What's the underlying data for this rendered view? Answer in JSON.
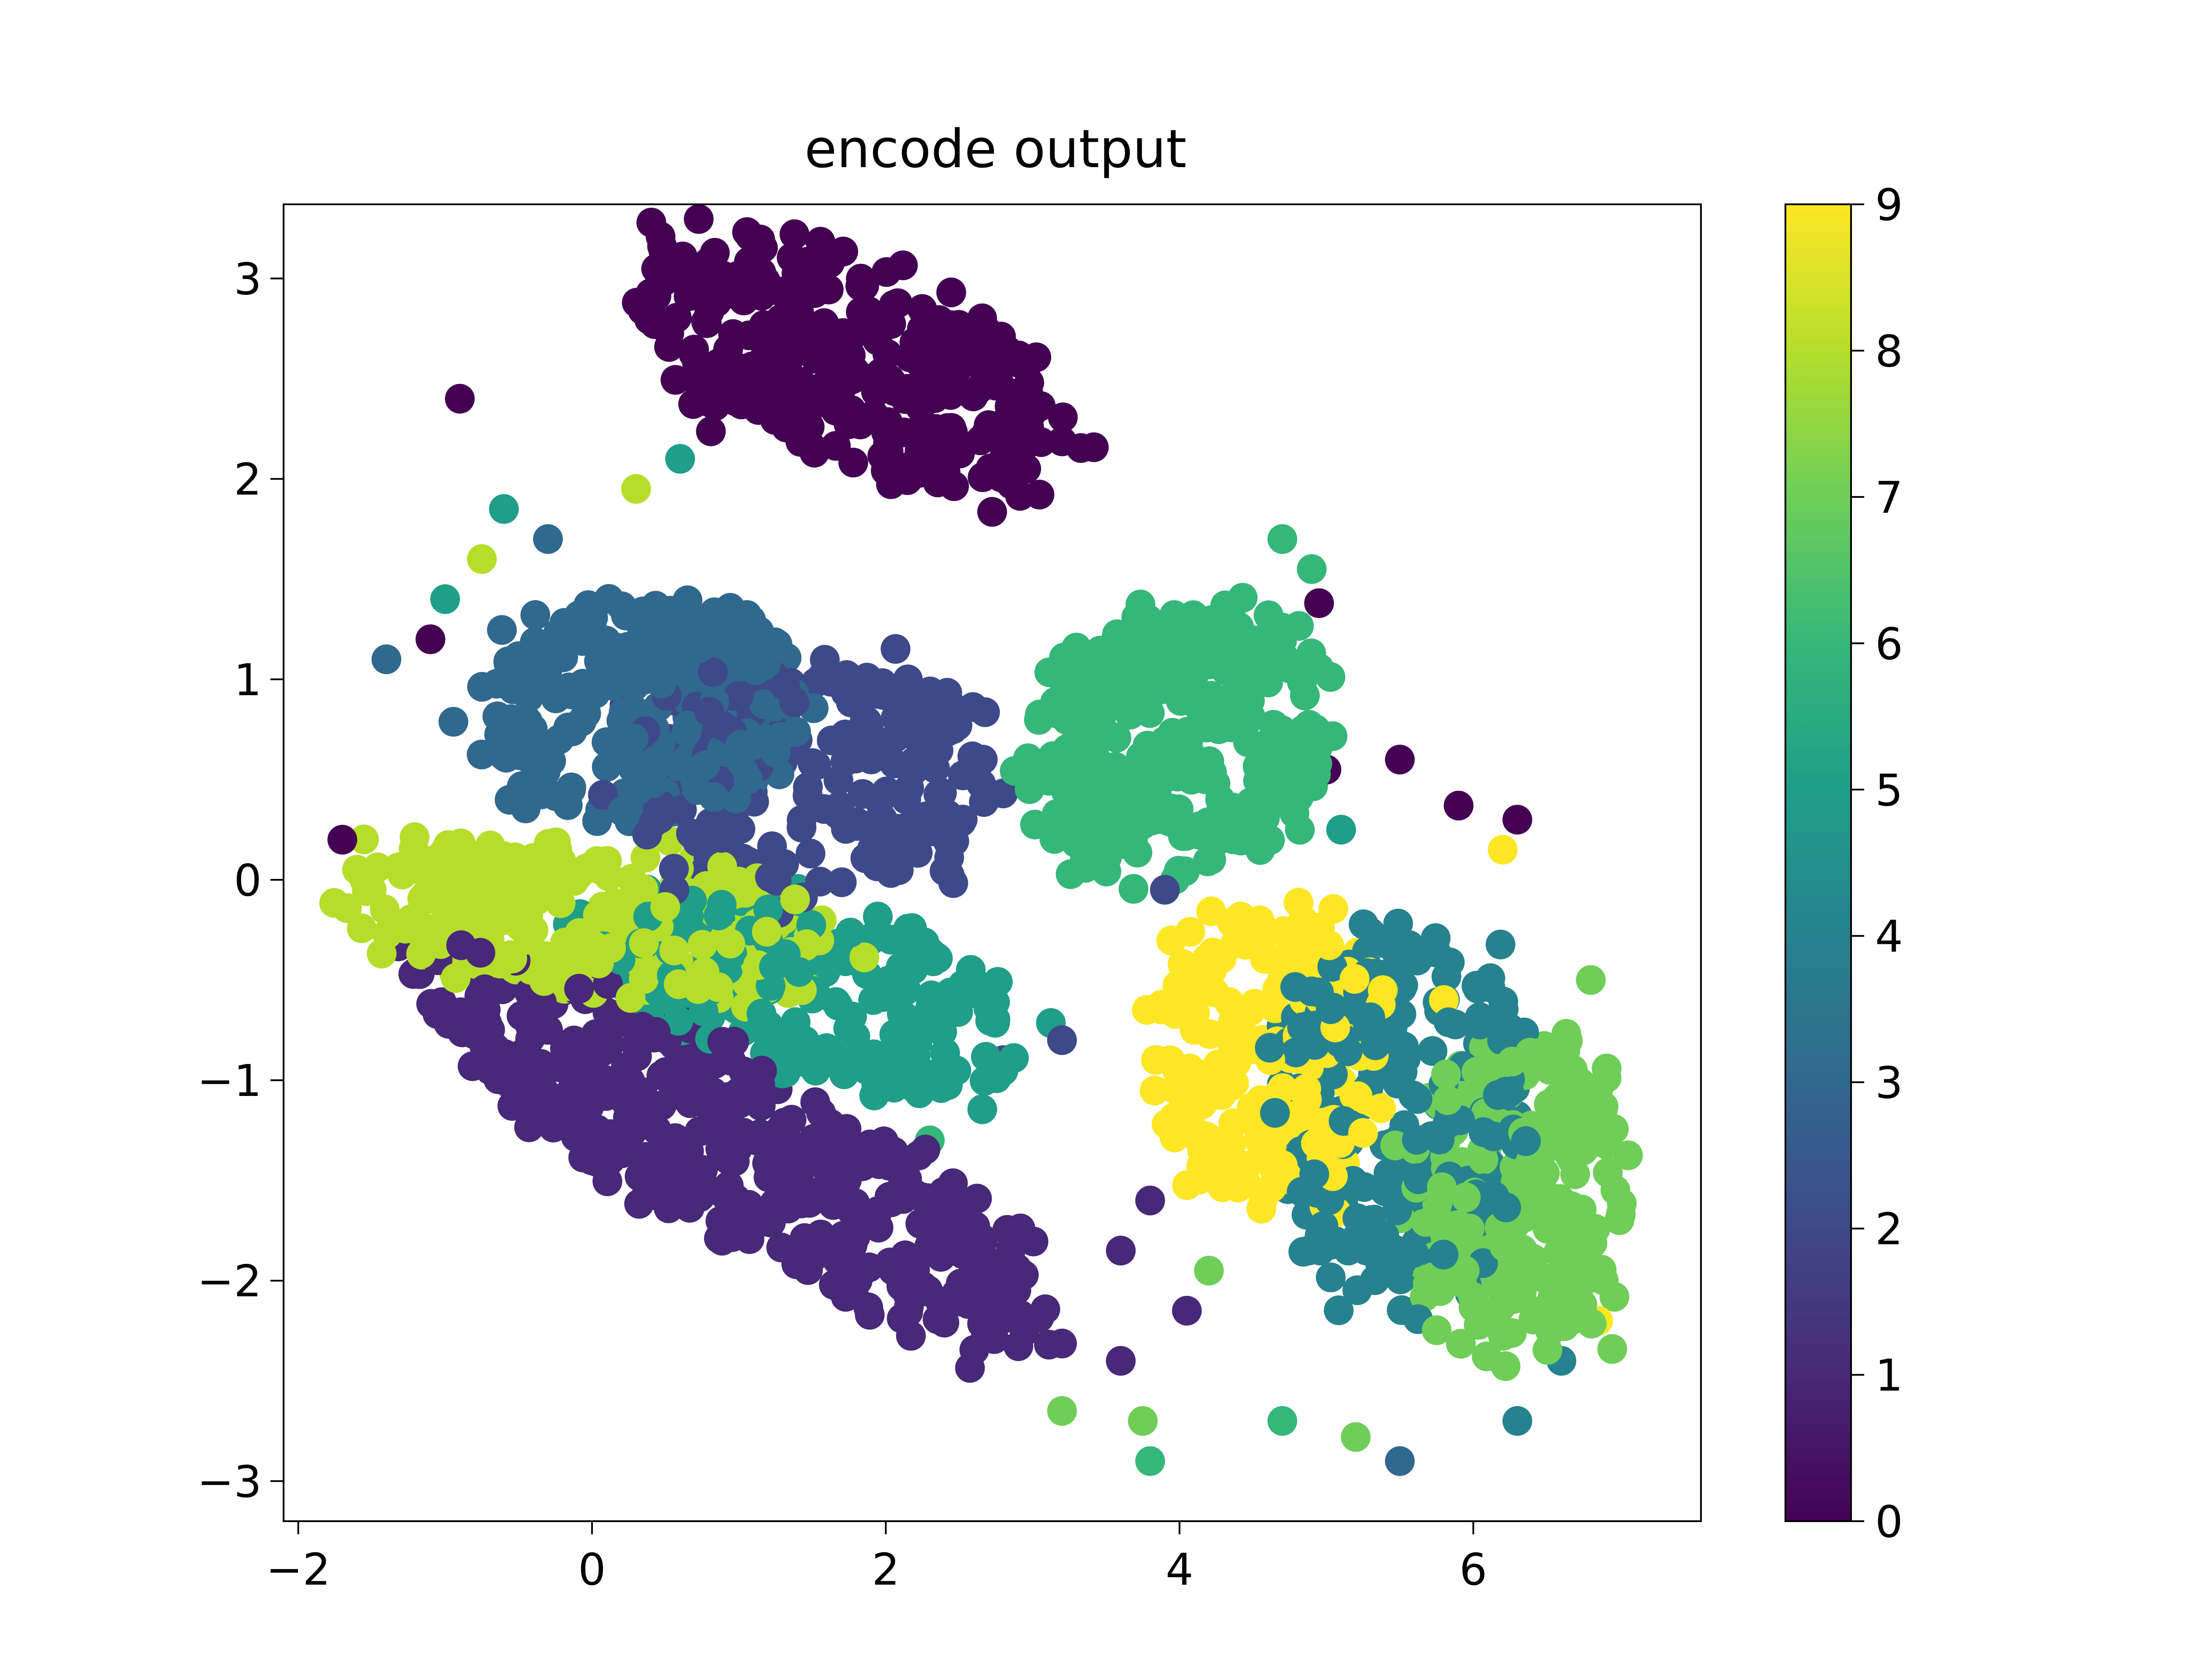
{
  "chart_data": {
    "type": "scatter",
    "title": "encode output",
    "xlabel": "",
    "ylabel": "",
    "xlim": [
      -2.1,
      7.55
    ],
    "ylim": [
      -3.2,
      3.37
    ],
    "x_ticks": [
      -2,
      0,
      2,
      4,
      6
    ],
    "y_ticks": [
      -3,
      -2,
      -1,
      0,
      1,
      2,
      3
    ],
    "x_tick_labels": [
      "−2",
      "0",
      "2",
      "4",
      "6"
    ],
    "y_tick_labels": [
      "−3",
      "−2",
      "−1",
      "0",
      "1",
      "2",
      "3"
    ],
    "grid": false,
    "legend": "none",
    "colormap": "viridis",
    "colorbar": {
      "min": 0,
      "max": 9,
      "ticks": [
        0,
        1,
        2,
        3,
        4,
        5,
        6,
        7,
        8,
        9
      ],
      "tick_labels": [
        "0",
        "1",
        "2",
        "3",
        "4",
        "5",
        "6",
        "7",
        "8",
        "9"
      ],
      "placement": "right"
    },
    "marker": "filled circle",
    "point_count": "~3000 (dense clusters)",
    "class_clusters": [
      {
        "label": 0,
        "color": "#440154",
        "center": [
          1.8,
          2.55
        ],
        "spread": [
          1.5,
          0.5
        ],
        "tilt": -0.25,
        "count": 330,
        "outliers": [
          [
            -0.9,
            2.4
          ],
          [
            -1.1,
            1.2
          ],
          [
            -1.7,
            0.2
          ],
          [
            -0.35,
            -0.42
          ],
          [
            5.5,
            0.6
          ],
          [
            5.9,
            0.37
          ],
          [
            6.3,
            0.3
          ],
          [
            5.0,
            0.55
          ],
          [
            4.95,
            1.38
          ]
        ]
      },
      {
        "label": 1,
        "color": "#482878",
        "center": [
          1.0,
          -1.35
        ],
        "spread": [
          2.25,
          0.48
        ],
        "tilt": -0.38,
        "count": 420,
        "outliers": [
          [
            3.8,
            -1.6
          ],
          [
            3.6,
            -1.85
          ],
          [
            4.05,
            -2.15
          ],
          [
            3.6,
            -2.4
          ]
        ]
      },
      {
        "label": 2,
        "color": "#3e4989",
        "center": [
          1.5,
          0.55
        ],
        "spread": [
          1.2,
          0.6
        ],
        "tilt": 0.0,
        "count": 220,
        "outliers": [
          [
            2.8,
            -0.9
          ],
          [
            3.2,
            -0.8
          ],
          [
            3.9,
            -0.05
          ],
          [
            3.6,
            0.2
          ]
        ]
      },
      {
        "label": 3,
        "color": "#31688e",
        "center": [
          0.3,
          0.85
        ],
        "spread": [
          1.1,
          0.55
        ],
        "tilt": 0.1,
        "count": 260,
        "outliers": [
          [
            -1.4,
            1.1
          ],
          [
            -0.3,
            1.7
          ],
          [
            5.5,
            -2.9
          ]
        ]
      },
      {
        "label": 4,
        "color": "#26828e",
        "center": [
          5.5,
          -1.2
        ],
        "spread": [
          0.85,
          0.9
        ],
        "tilt": 0.0,
        "count": 260,
        "outliers": [
          [
            6.6,
            -2.4
          ],
          [
            6.3,
            -2.7
          ]
        ]
      },
      {
        "label": 5,
        "color": "#1f9e89",
        "center": [
          1.5,
          -0.55
        ],
        "spread": [
          1.4,
          0.45
        ],
        "tilt": -0.2,
        "count": 230,
        "outliers": [
          [
            -0.6,
            1.85
          ],
          [
            -1.0,
            1.4
          ],
          [
            0.6,
            2.1
          ],
          [
            5.1,
            0.25
          ]
        ]
      },
      {
        "label": 6,
        "color": "#35b779",
        "center": [
          4.0,
          0.7
        ],
        "spread": [
          1.0,
          0.65
        ],
        "tilt": 0.15,
        "count": 340,
        "outliers": [
          [
            4.9,
            1.55
          ],
          [
            4.7,
            1.7
          ],
          [
            3.8,
            -2.9
          ],
          [
            4.7,
            -2.7
          ],
          [
            2.3,
            -1.3
          ]
        ]
      },
      {
        "label": 7,
        "color": "#6ece58",
        "center": [
          6.3,
          -1.55
        ],
        "spread": [
          0.75,
          0.75
        ],
        "tilt": 0.0,
        "count": 260,
        "outliers": [
          [
            6.8,
            -0.5
          ],
          [
            6.85,
            -1.05
          ],
          [
            3.2,
            -2.65
          ],
          [
            3.75,
            -2.7
          ],
          [
            5.2,
            -2.78
          ],
          [
            4.2,
            -1.95
          ]
        ]
      },
      {
        "label": 8,
        "color": "#b5de2b",
        "center": [
          0.0,
          -0.2
        ],
        "spread": [
          1.55,
          0.38
        ],
        "tilt": -0.08,
        "count": 300,
        "outliers": [
          [
            -1.6,
            0.05
          ],
          [
            -1.55,
            0.0
          ],
          [
            -1.5,
            -0.05
          ],
          [
            0.3,
            1.95
          ],
          [
            -0.75,
            1.6
          ]
        ]
      },
      {
        "label": 9,
        "color": "#fde725",
        "center": [
          4.6,
          -0.9
        ],
        "spread": [
          0.75,
          0.75
        ],
        "tilt": 0.0,
        "count": 210,
        "outliers": [
          [
            6.2,
            0.15
          ],
          [
            5.8,
            -0.6
          ],
          [
            6.85,
            -2.2
          ]
        ]
      }
    ]
  }
}
